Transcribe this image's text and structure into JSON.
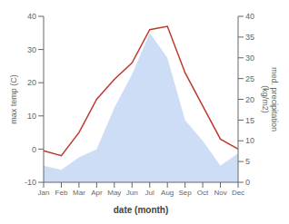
{
  "chart_data": {
    "type": "line",
    "categories": [
      "Jan",
      "Feb",
      "Mar",
      "Apr",
      "May",
      "Jun",
      "Jul",
      "Aug",
      "Sep",
      "Oct",
      "Nov",
      "Dec"
    ],
    "xlabel": "date (month)",
    "ylabel": "max temp (C)",
    "y2label": "med. precipitation\n(kg/m2)",
    "series": [
      {
        "type": "area",
        "axis": "y2",
        "color": "#aec6f0",
        "values": [
          4,
          3,
          6,
          8,
          18,
          26,
          36,
          30,
          15,
          10,
          4,
          7
        ]
      },
      {
        "type": "line",
        "color": "#c0392b",
        "values": [
          -0.5,
          -2.0,
          5.0,
          15.0,
          21.0,
          26.0,
          36.0,
          37.0,
          23.0,
          13.0,
          3.0,
          0.0
        ]
      }
    ],
    "ylim": [
      -10,
      40
    ],
    "yticks": [
      -10,
      0,
      10,
      20,
      30,
      40
    ],
    "y2lim": [
      0,
      40
    ],
    "y2ticks": [
      0,
      5,
      10,
      15,
      20,
      25,
      30,
      35,
      40
    ],
    "grid": false
  }
}
